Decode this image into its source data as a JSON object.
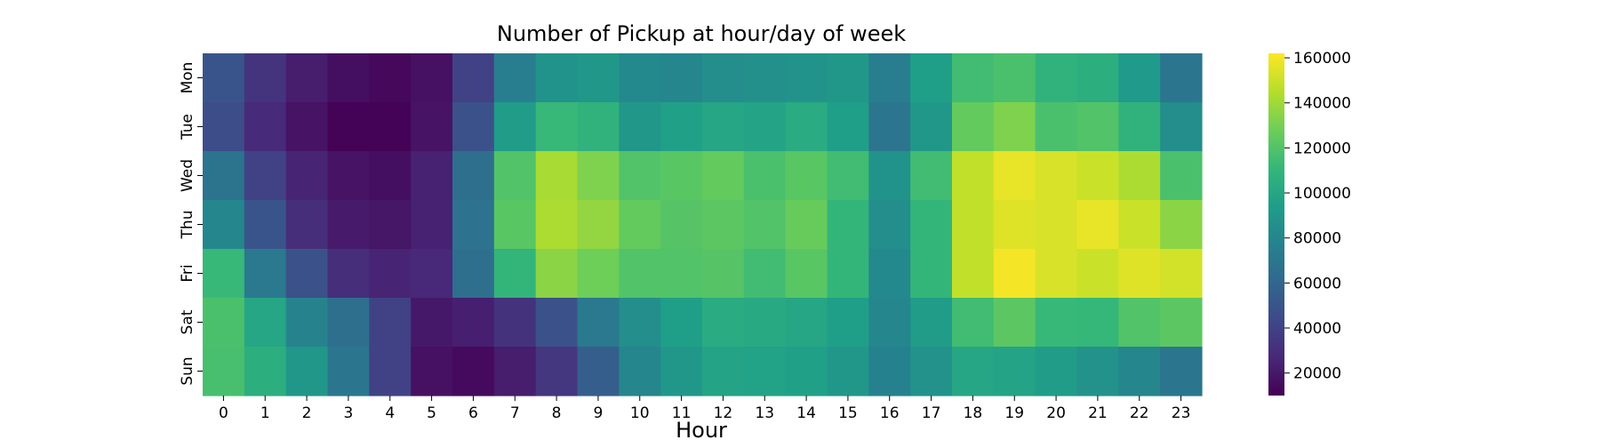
{
  "chart_data": {
    "type": "heatmap",
    "title": "Number of Pickup at hour/day of week",
    "xlabel": "Hour",
    "ylabel": "",
    "x_categories": [
      "0",
      "1",
      "2",
      "3",
      "4",
      "5",
      "6",
      "7",
      "8",
      "9",
      "10",
      "11",
      "12",
      "13",
      "14",
      "15",
      "16",
      "17",
      "18",
      "19",
      "20",
      "21",
      "22",
      "23"
    ],
    "y_categories": [
      "Mon",
      "Tue",
      "Wed",
      "Thu",
      "Fri",
      "Sat",
      "Sun"
    ],
    "values": [
      [
        50000,
        33000,
        22000,
        16000,
        13000,
        17000,
        40000,
        75000,
        88000,
        90000,
        82000,
        80000,
        85000,
        86000,
        88000,
        90000,
        75000,
        95000,
        115000,
        118000,
        108000,
        105000,
        92000,
        70000
      ],
      [
        46000,
        28000,
        18000,
        11000,
        11000,
        18000,
        48000,
        93000,
        112000,
        108000,
        90000,
        96000,
        100000,
        98000,
        103000,
        95000,
        70000,
        90000,
        125000,
        132000,
        118000,
        120000,
        108000,
        85000
      ],
      [
        68000,
        40000,
        25000,
        18000,
        16000,
        24000,
        65000,
        120000,
        142000,
        132000,
        120000,
        122000,
        125000,
        118000,
        122000,
        115000,
        88000,
        115000,
        148000,
        157000,
        153000,
        150000,
        143000,
        118000
      ],
      [
        80000,
        50000,
        30000,
        21000,
        19000,
        24000,
        67000,
        122000,
        143000,
        137000,
        125000,
        121000,
        123000,
        120000,
        126000,
        110000,
        85000,
        110000,
        148000,
        155000,
        153000,
        157000,
        150000,
        135000
      ],
      [
        112000,
        72000,
        48000,
        30000,
        25000,
        27000,
        65000,
        110000,
        135000,
        128000,
        120000,
        120000,
        121000,
        115000,
        122000,
        110000,
        82000,
        110000,
        148000,
        160000,
        153000,
        150000,
        155000,
        152000
      ],
      [
        118000,
        100000,
        78000,
        65000,
        40000,
        20000,
        23000,
        32000,
        48000,
        72000,
        85000,
        95000,
        103000,
        102000,
        100000,
        95000,
        80000,
        93000,
        115000,
        123000,
        112000,
        111000,
        120000,
        123000
      ],
      [
        117000,
        105000,
        90000,
        70000,
        40000,
        17000,
        14000,
        22000,
        34000,
        55000,
        80000,
        90000,
        98000,
        97000,
        96000,
        90000,
        77000,
        87000,
        100000,
        98000,
        93000,
        87000,
        80000,
        70000
      ]
    ],
    "colorbar": {
      "min": 10000,
      "max": 162000,
      "ticks": [
        20000,
        40000,
        60000,
        80000,
        100000,
        120000,
        140000,
        160000
      ],
      "tick_labels": [
        "20000",
        "40000",
        "60000",
        "80000",
        "100000",
        "120000",
        "140000",
        "160000"
      ]
    },
    "colormap": "viridis",
    "grid": false
  }
}
